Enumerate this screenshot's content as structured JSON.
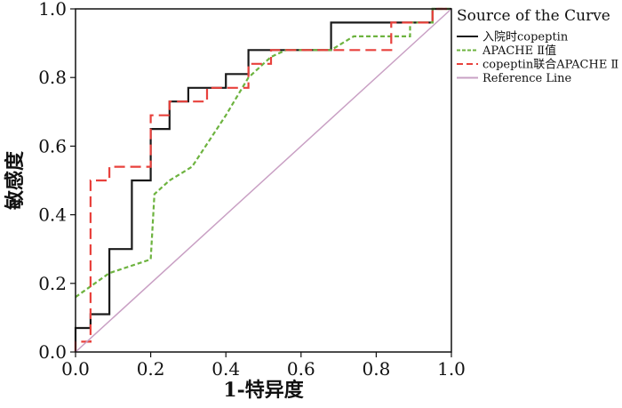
{
  "chart_data": {
    "type": "line",
    "xlabel": "1-特异度",
    "ylabel": "敏感度",
    "xlim": [
      0,
      1
    ],
    "ylim": [
      0,
      1
    ],
    "xticks": [
      "0.0",
      "0.2",
      "0.4",
      "0.6",
      "0.8",
      "1.0"
    ],
    "yticks": [
      "0.0",
      "0.2",
      "0.4",
      "0.6",
      "0.8",
      "1.0"
    ],
    "grid": false,
    "legend_position": "top-right",
    "legend_title": "Source of the Curve",
    "series": [
      {
        "name": "入院时copeptin",
        "color": "#1a1a1a",
        "style": "solid",
        "x": [
          0,
          0,
          0.04,
          0.04,
          0.09,
          0.09,
          0.15,
          0.15,
          0.2,
          0.2,
          0.25,
          0.25,
          0.3,
          0.3,
          0.4,
          0.4,
          0.46,
          0.46,
          0.68,
          0.68,
          0.95,
          0.95,
          1.0
        ],
        "y": [
          0,
          0.07,
          0.07,
          0.11,
          0.11,
          0.3,
          0.3,
          0.5,
          0.5,
          0.65,
          0.65,
          0.73,
          0.73,
          0.77,
          0.77,
          0.81,
          0.81,
          0.88,
          0.88,
          0.96,
          0.96,
          1.0,
          1.0
        ]
      },
      {
        "name": "APACHE Ⅱ值",
        "color": "#6db33f",
        "style": "dashed",
        "x": [
          0,
          0.09,
          0.2,
          0.21,
          0.25,
          0.31,
          0.4,
          0.46,
          0.52,
          0.56,
          0.68,
          0.74,
          0.82,
          0.89,
          0.89,
          0.95,
          0.95,
          1.0
        ],
        "y": [
          0.16,
          0.23,
          0.27,
          0.46,
          0.5,
          0.54,
          0.69,
          0.8,
          0.86,
          0.88,
          0.88,
          0.92,
          0.92,
          0.92,
          0.96,
          0.96,
          1.0,
          1.0
        ]
      },
      {
        "name": "copeptin联合APACHE Ⅱ",
        "color": "#e8413c",
        "style": "dashed",
        "x": [
          0,
          0,
          0.04,
          0.04,
          0.09,
          0.09,
          0.2,
          0.2,
          0.25,
          0.25,
          0.35,
          0.35,
          0.46,
          0.46,
          0.52,
          0.52,
          0.84,
          0.84,
          0.95,
          0.95,
          1.0
        ],
        "y": [
          0,
          0.03,
          0.03,
          0.5,
          0.5,
          0.54,
          0.54,
          0.69,
          0.69,
          0.73,
          0.73,
          0.77,
          0.77,
          0.84,
          0.84,
          0.88,
          0.88,
          0.96,
          0.96,
          1.0,
          1.0
        ]
      },
      {
        "name": "Reference Line",
        "color": "#c9a0c4",
        "style": "solid",
        "x": [
          0,
          1
        ],
        "y": [
          0,
          1
        ]
      }
    ]
  }
}
